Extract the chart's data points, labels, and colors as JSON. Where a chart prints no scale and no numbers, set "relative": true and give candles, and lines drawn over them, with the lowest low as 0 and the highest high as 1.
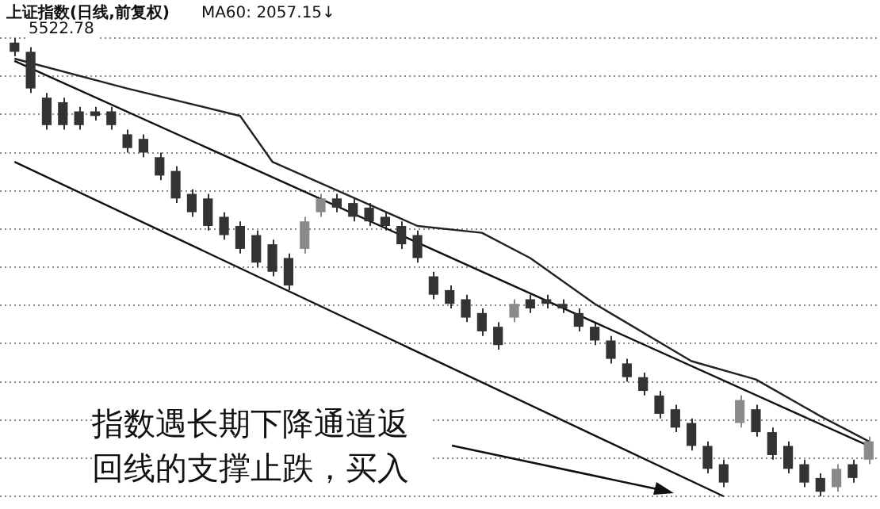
{
  "chart_data": {
    "type": "candlestick",
    "title": "上证指数(日线,前复权)",
    "subtitle": "MA60: 2057.15↓",
    "relative": true,
    "grid": "y",
    "legend": false,
    "categories": [
      null,
      null,
      null,
      null,
      null,
      null,
      null,
      null,
      null,
      null,
      null,
      null,
      null,
      null,
      null,
      null,
      null,
      null,
      null,
      null,
      null,
      null,
      null,
      null,
      null,
      null,
      null,
      null,
      null,
      null,
      null,
      null,
      null,
      null,
      null,
      null,
      null,
      null,
      null,
      null,
      null,
      null,
      null,
      null,
      null,
      null,
      null,
      null,
      null,
      null,
      null,
      null,
      null,
      null
    ],
    "ohlc": [
      [
        0.99,
        1.0,
        0.96,
        0.97
      ],
      [
        0.97,
        0.98,
        0.88,
        0.89
      ],
      [
        0.87,
        0.88,
        0.8,
        0.81
      ],
      [
        0.86,
        0.87,
        0.8,
        0.81
      ],
      [
        0.84,
        0.85,
        0.8,
        0.81
      ],
      [
        0.84,
        0.85,
        0.82,
        0.83
      ],
      [
        0.84,
        0.85,
        0.8,
        0.81
      ],
      [
        0.79,
        0.8,
        0.75,
        0.76
      ],
      [
        0.78,
        0.79,
        0.74,
        0.75
      ],
      [
        0.74,
        0.75,
        0.69,
        0.7
      ],
      [
        0.71,
        0.72,
        0.64,
        0.65
      ],
      [
        0.66,
        0.67,
        0.61,
        0.62
      ],
      [
        0.65,
        0.66,
        0.58,
        0.59
      ],
      [
        0.61,
        0.62,
        0.56,
        0.57
      ],
      [
        0.59,
        0.6,
        0.53,
        0.54
      ],
      [
        0.57,
        0.58,
        0.5,
        0.51
      ],
      [
        0.55,
        0.56,
        0.48,
        0.49
      ],
      [
        0.52,
        0.53,
        0.45,
        0.46
      ],
      [
        0.54,
        0.61,
        0.53,
        0.6
      ],
      [
        0.62,
        0.66,
        0.61,
        0.65
      ],
      [
        0.65,
        0.66,
        0.62,
        0.63
      ],
      [
        0.64,
        0.65,
        0.6,
        0.61
      ],
      [
        0.63,
        0.64,
        0.59,
        0.6
      ],
      [
        0.61,
        0.62,
        0.58,
        0.59
      ],
      [
        0.59,
        0.6,
        0.54,
        0.55
      ],
      [
        0.57,
        0.58,
        0.51,
        0.52
      ],
      [
        0.48,
        0.49,
        0.43,
        0.44
      ],
      [
        0.45,
        0.46,
        0.41,
        0.42
      ],
      [
        0.43,
        0.44,
        0.38,
        0.39
      ],
      [
        0.4,
        0.41,
        0.35,
        0.36
      ],
      [
        0.37,
        0.38,
        0.32,
        0.33
      ],
      [
        0.39,
        0.43,
        0.38,
        0.42
      ],
      [
        0.43,
        0.44,
        0.4,
        0.41
      ],
      [
        0.43,
        0.44,
        0.41,
        0.42
      ],
      [
        0.42,
        0.43,
        0.4,
        0.41
      ],
      [
        0.4,
        0.41,
        0.36,
        0.37
      ],
      [
        0.37,
        0.38,
        0.33,
        0.34
      ],
      [
        0.34,
        0.35,
        0.29,
        0.3
      ],
      [
        0.29,
        0.3,
        0.25,
        0.26
      ],
      [
        0.26,
        0.27,
        0.22,
        0.23
      ],
      [
        0.22,
        0.23,
        0.17,
        0.18
      ],
      [
        0.19,
        0.2,
        0.14,
        0.15
      ],
      [
        0.16,
        0.17,
        0.1,
        0.11
      ],
      [
        0.11,
        0.12,
        0.05,
        0.06
      ],
      [
        0.07,
        0.08,
        0.02,
        0.03
      ],
      [
        0.16,
        0.22,
        0.15,
        0.21
      ],
      [
        0.19,
        0.2,
        0.13,
        0.14
      ],
      [
        0.14,
        0.15,
        0.08,
        0.09
      ],
      [
        0.11,
        0.12,
        0.05,
        0.06
      ],
      [
        0.07,
        0.08,
        0.02,
        0.03
      ],
      [
        0.04,
        0.05,
        0.0,
        0.01
      ],
      [
        0.02,
        0.07,
        0.01,
        0.06
      ],
      [
        0.07,
        0.08,
        0.03,
        0.04
      ],
      [
        0.08,
        0.13,
        0.07,
        0.12
      ]
    ],
    "colors": [
      "#333333",
      "#333333",
      "#333333",
      "#333333",
      "#333333",
      "#333333",
      "#333333",
      "#333333",
      "#333333",
      "#333333",
      "#333333",
      "#333333",
      "#333333",
      "#333333",
      "#333333",
      "#333333",
      "#333333",
      "#333333",
      "#8a8a8a",
      "#8a8a8a",
      "#333333",
      "#333333",
      "#333333",
      "#333333",
      "#333333",
      "#333333",
      "#333333",
      "#333333",
      "#333333",
      "#333333",
      "#333333",
      "#8a8a8a",
      "#333333",
      "#333333",
      "#333333",
      "#333333",
      "#333333",
      "#333333",
      "#333333",
      "#333333",
      "#333333",
      "#333333",
      "#333333",
      "#333333",
      "#333333",
      "#8a8a8a",
      "#333333",
      "#333333",
      "#333333",
      "#333333",
      "#333333",
      "#8a8a8a",
      "#333333",
      "#8a8a8a"
    ],
    "series": [
      {
        "type": "line",
        "color": "#222222",
        "values": [
          0.955,
          null,
          null,
          null,
          null,
          null,
          null,
          0.89,
          null,
          null,
          null,
          null,
          null,
          null,
          0.83,
          null,
          0.73,
          null,
          null,
          null,
          null,
          null,
          null,
          null,
          null,
          0.59,
          null,
          null,
          null,
          0.575,
          null,
          null,
          0.52,
          null,
          null,
          null,
          0.42,
          null,
          null,
          null,
          null,
          null,
          0.295,
          null,
          null,
          null,
          0.255,
          null,
          null,
          null,
          0.175,
          null,
          null,
          0.12
        ]
      },
      {
        "type": "line",
        "color": "#111111",
        "values": [
          0.95,
          null,
          null,
          null,
          null,
          null,
          null,
          null,
          null,
          null,
          null,
          null,
          null,
          null,
          null,
          null,
          null,
          null,
          null,
          null,
          null,
          null,
          null,
          null,
          null,
          null,
          null,
          null,
          null,
          null,
          null,
          null,
          null,
          null,
          null,
          null,
          null,
          null,
          null,
          null,
          null,
          null,
          null,
          null,
          null,
          null,
          null,
          null,
          null,
          null,
          null,
          null,
          null,
          0.11
        ]
      },
      {
        "type": "line",
        "color": "#111111",
        "values": [
          0.73,
          null,
          null,
          null,
          null,
          null,
          null,
          null,
          null,
          null,
          null,
          null,
          null,
          null,
          null,
          null,
          null,
          null,
          null,
          null,
          null,
          null,
          null,
          null,
          null,
          null,
          null,
          null,
          null,
          null,
          null,
          null,
          null,
          null,
          null,
          null,
          null,
          null,
          null,
          null,
          null,
          null,
          null,
          null,
          0.0,
          null,
          null,
          null,
          null,
          null,
          null,
          null,
          null,
          null
        ]
      }
    ],
    "annotations": [
      "5522.78",
      "指数遇长期下降通道返回线的支撑止跌，买入"
    ]
  }
}
